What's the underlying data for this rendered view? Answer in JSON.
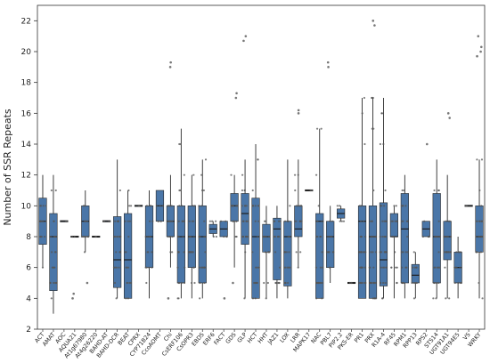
{
  "chart_data": {
    "type": "box",
    "title": "",
    "xlabel": "",
    "ylabel": "Number of SSR Repeats",
    "ylim": [
      2,
      23
    ],
    "yticks": [
      2,
      4,
      6,
      8,
      10,
      12,
      14,
      16,
      18,
      20,
      22
    ],
    "grid": false,
    "legend": "none",
    "colors": {
      "box_fill": "#4a76a8",
      "box_edge": "#2b2b2b",
      "median": "#1f1f1f",
      "points": "#555555"
    },
    "groups": [
      {
        "category": "ACT",
        "q1": 7.5,
        "median": 9.0,
        "q3": 10.5,
        "whisker_low": 6.0,
        "whisker_high": 12.0,
        "outliers": []
      },
      {
        "category": "AMAT",
        "q1": 4.5,
        "median": 8.0,
        "q3": 9.5,
        "whisker_low": 3.0,
        "whisker_high": 12.0,
        "outliers": []
      },
      {
        "category": "AOC",
        "q1": 9.0,
        "median": 9.0,
        "q3": 9.0,
        "whisker_low": 9.0,
        "whisker_high": 9.0,
        "outliers": []
      },
      {
        "category": "AQUA21",
        "q1": 8.0,
        "median": 8.0,
        "q3": 8.0,
        "whisker_low": 8.0,
        "whisker_high": 8.0,
        "outliers": [
          4.0,
          4.3
        ]
      },
      {
        "category": "At1g67980",
        "q1": 8.0,
        "median": 9.0,
        "q3": 10.0,
        "whisker_low": 7.0,
        "whisker_high": 11.0,
        "outliers": [
          5.0
        ]
      },
      {
        "category": "At4g26220",
        "q1": 8.0,
        "median": 8.0,
        "q3": 8.0,
        "whisker_low": 8.0,
        "whisker_high": 8.0,
        "outliers": []
      },
      {
        "category": "BAHD-AT",
        "q1": 9.0,
        "median": 9.0,
        "q3": 9.0,
        "whisker_low": 9.0,
        "whisker_high": 9.0,
        "outliers": []
      },
      {
        "category": "BAHD-DCR",
        "q1": 4.7,
        "median": 6.5,
        "q3": 9.3,
        "whisker_low": 4.0,
        "whisker_high": 13.0,
        "outliers": []
      },
      {
        "category": "BEAT",
        "q1": 4.0,
        "median": 6.5,
        "q3": 9.5,
        "whisker_low": 4.0,
        "whisker_high": 11.0,
        "outliers": []
      },
      {
        "category": "CPRX",
        "q1": 10.0,
        "median": 10.0,
        "q3": 10.0,
        "whisker_low": 10.0,
        "whisker_high": 10.0,
        "outliers": []
      },
      {
        "category": "CYP71B24",
        "q1": 6.0,
        "median": 8.0,
        "q3": 10.0,
        "whisker_low": 4.0,
        "whisker_high": 11.0,
        "outliers": []
      },
      {
        "category": "CcoAOMT",
        "q1": 9.0,
        "median": 10.0,
        "q3": 11.0,
        "whisker_low": 9.0,
        "whisker_high": 11.0,
        "outliers": []
      },
      {
        "category": "Chi",
        "q1": 8.0,
        "median": 9.0,
        "q3": 10.0,
        "whisker_low": 6.0,
        "whisker_high": 12.0,
        "outliers": [
          19.0,
          19.3,
          4.0
        ]
      },
      {
        "category": "CsERF106",
        "q1": 5.0,
        "median": 8.0,
        "q3": 10.0,
        "whisker_low": 4.0,
        "whisker_high": 15.0,
        "outliers": []
      },
      {
        "category": "CsOPR3",
        "q1": 6.0,
        "median": 8.0,
        "q3": 10.0,
        "whisker_low": 4.0,
        "whisker_high": 12.0,
        "outliers": []
      },
      {
        "category": "EBDS",
        "q1": 5.0,
        "median": 8.0,
        "q3": 10.0,
        "whisker_low": 4.0,
        "whisker_high": 13.0,
        "outliers": []
      },
      {
        "category": "ERF6",
        "q1": 8.2,
        "median": 8.5,
        "q3": 8.8,
        "whisker_low": 8.0,
        "whisker_high": 9.0,
        "outliers": []
      },
      {
        "category": "FACT",
        "q1": 8.0,
        "median": 8.5,
        "q3": 9.0,
        "whisker_low": 8.0,
        "whisker_high": 9.0,
        "outliers": [
          4.0
        ]
      },
      {
        "category": "GDS",
        "q1": 9.0,
        "median": 10.0,
        "q3": 10.8,
        "whisker_low": 6.0,
        "whisker_high": 12.0,
        "outliers": [
          17.0,
          17.3,
          5.0
        ]
      },
      {
        "category": "GLP",
        "q1": 7.5,
        "median": 9.5,
        "q3": 10.8,
        "whisker_low": 4.0,
        "whisker_high": 13.0,
        "outliers": [
          20.7,
          21.0
        ]
      },
      {
        "category": "HCT",
        "q1": 4.0,
        "median": 8.0,
        "q3": 10.5,
        "whisker_low": 4.0,
        "whisker_high": 14.0,
        "outliers": []
      },
      {
        "category": "HHT",
        "q1": 7.0,
        "median": 8.0,
        "q3": 8.8,
        "whisker_low": 4.0,
        "whisker_high": 10.0,
        "outliers": []
      },
      {
        "category": "JAZ1",
        "q1": 5.2,
        "median": 8.5,
        "q3": 9.2,
        "whisker_low": 4.0,
        "whisker_high": 10.0,
        "outliers": []
      },
      {
        "category": "LOX",
        "q1": 4.8,
        "median": 8.0,
        "q3": 9.0,
        "whisker_low": 4.0,
        "whisker_high": 13.0,
        "outliers": []
      },
      {
        "category": "LRR",
        "q1": 8.0,
        "median": 8.5,
        "q3": 10.0,
        "whisker_low": 6.0,
        "whisker_high": 13.0,
        "outliers": [
          16.0,
          16.2
        ]
      },
      {
        "category": "MAPK17",
        "q1": 11.0,
        "median": 11.0,
        "q3": 11.0,
        "whisker_low": 11.0,
        "whisker_high": 11.0,
        "outliers": []
      },
      {
        "category": "NAC",
        "q1": 4.0,
        "median": 9.0,
        "q3": 9.5,
        "whisker_low": 4.0,
        "whisker_high": 15.0,
        "outliers": []
      },
      {
        "category": "PBL7",
        "q1": 6.0,
        "median": 8.0,
        "q3": 9.0,
        "whisker_low": 5.0,
        "whisker_high": 10.0,
        "outliers": [
          19.0,
          19.3
        ]
      },
      {
        "category": "PIP2.2",
        "q1": 9.2,
        "median": 9.5,
        "q3": 9.8,
        "whisker_low": 9.0,
        "whisker_high": 10.0,
        "outliers": []
      },
      {
        "category": "PKS-ER",
        "q1": 5.0,
        "median": 5.0,
        "q3": 5.0,
        "whisker_low": 5.0,
        "whisker_high": 5.0,
        "outliers": []
      },
      {
        "category": "PR1",
        "q1": 4.0,
        "median": 9.0,
        "q3": 10.0,
        "whisker_low": 4.0,
        "whisker_high": 17.0,
        "outliers": []
      },
      {
        "category": "PRX",
        "q1": 4.0,
        "median": 8.0,
        "q3": 10.0,
        "whisker_low": 4.0,
        "whisker_high": 17.0,
        "outliers": [
          21.7,
          22.0
        ]
      },
      {
        "category": "R1A-4",
        "q1": 4.8,
        "median": 6.5,
        "q3": 10.2,
        "whisker_low": 4.0,
        "whisker_high": 17.0,
        "outliers": []
      },
      {
        "category": "RF45",
        "q1": 8.0,
        "median": 8.0,
        "q3": 9.5,
        "whisker_low": 4.0,
        "whisker_high": 10.0,
        "outliers": []
      },
      {
        "category": "RPM1",
        "q1": 5.0,
        "median": 8.5,
        "q3": 10.8,
        "whisker_low": 4.0,
        "whisker_high": 12.0,
        "outliers": []
      },
      {
        "category": "RPP13",
        "q1": 5.0,
        "median": 5.5,
        "q3": 6.2,
        "whisker_low": 4.0,
        "whisker_high": 7.0,
        "outliers": []
      },
      {
        "category": "RPS2",
        "q1": 8.0,
        "median": 8.5,
        "q3": 9.0,
        "whisker_low": 8.0,
        "whisker_high": 9.0,
        "outliers": [
          14.0
        ]
      },
      {
        "category": "STS14",
        "q1": 5.0,
        "median": 8.0,
        "q3": 10.8,
        "whisker_low": 4.0,
        "whisker_high": 13.0,
        "outliers": []
      },
      {
        "category": "UGT91A1",
        "q1": 6.5,
        "median": 8.0,
        "q3": 9.0,
        "whisker_low": 4.0,
        "whisker_high": 12.0,
        "outliers": [
          15.7,
          16.0
        ]
      },
      {
        "category": "UGT94E5",
        "q1": 5.0,
        "median": 6.0,
        "q3": 7.0,
        "whisker_low": 4.0,
        "whisker_high": 8.0,
        "outliers": []
      },
      {
        "category": "VS",
        "q1": 10.0,
        "median": 10.0,
        "q3": 10.0,
        "whisker_low": 10.0,
        "whisker_high": 10.0,
        "outliers": []
      },
      {
        "category": "WRKY",
        "q1": 7.0,
        "median": 8.0,
        "q3": 10.0,
        "whisker_low": 4.0,
        "whisker_high": 13.0,
        "outliers": [
          19.7,
          20.0,
          20.3,
          21.0
        ]
      }
    ]
  }
}
